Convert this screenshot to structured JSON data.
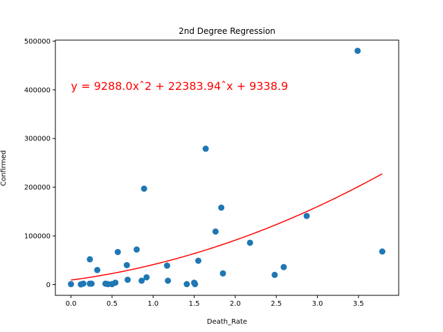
{
  "chart_data": {
    "type": "scatter",
    "title": "2nd Degree Regression",
    "xlabel": "Death_Rate",
    "ylabel": "Confirmed",
    "xlim": [
      -0.19,
      3.99
    ],
    "ylim": [
      -22000,
      502000
    ],
    "xticks": [
      0.0,
      0.5,
      1.0,
      1.5,
      2.0,
      2.5,
      3.0,
      3.5
    ],
    "xtick_labels": [
      "0.0",
      "0.5",
      "1.0",
      "1.5",
      "2.0",
      "2.5",
      "3.0",
      "3.5"
    ],
    "yticks": [
      0,
      100000,
      200000,
      300000,
      400000,
      500000
    ],
    "ytick_labels": [
      "0",
      "100000",
      "200000",
      "300000",
      "400000",
      "500000"
    ],
    "grid": false,
    "annotation": {
      "text": "y = 9288.0xˆ2 + 22383.94ˆx + 9338.9",
      "color": "#ff0000",
      "x": 0.0,
      "y": 400000
    },
    "series": [
      {
        "kind": "points",
        "color": "#1f77b4",
        "x": [
          0.0,
          0.12,
          0.15,
          0.23,
          0.23,
          0.25,
          0.32,
          0.42,
          0.45,
          0.5,
          0.54,
          0.57,
          0.68,
          0.69,
          0.8,
          0.86,
          0.89,
          0.92,
          1.17,
          1.18,
          1.41,
          1.5,
          1.51,
          1.55,
          1.64,
          1.76,
          1.83,
          1.85,
          2.18,
          2.48,
          2.59,
          2.87,
          3.49,
          3.79
        ],
        "y": [
          1000,
          500,
          2000,
          2000,
          52000,
          2000,
          30000,
          2000,
          1000,
          1000,
          4000,
          67000,
          40000,
          10000,
          72000,
          8000,
          197000,
          15000,
          39000,
          8000,
          1000,
          4000,
          1000,
          49000,
          279000,
          109000,
          158000,
          23000,
          86000,
          20000,
          36000,
          141000,
          480000,
          68000
        ]
      },
      {
        "kind": "curve",
        "color": "#ff0000",
        "coefficients": [
          9288.0,
          22383.94,
          9338.9
        ],
        "x_range": [
          0.0,
          3.79
        ]
      }
    ]
  }
}
